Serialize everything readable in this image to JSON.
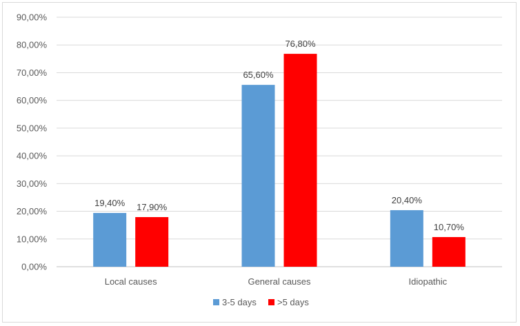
{
  "chart_data": {
    "type": "bar",
    "categories": [
      "Local causes",
      "General causes",
      "Idiopathic"
    ],
    "series": [
      {
        "name": "3-5 days",
        "color": "#5b9bd5",
        "values": [
          19.4,
          65.6,
          20.4
        ],
        "labels": [
          "19,40%",
          "65,60%",
          "20,40%"
        ]
      },
      {
        "name": ">5 days",
        "color": "#ff0000",
        "values": [
          17.9,
          76.8,
          10.7
        ],
        "labels": [
          "17,90%",
          "76,80%",
          "10,70%"
        ]
      }
    ],
    "ylim": [
      0,
      90
    ],
    "yticks": [
      0,
      10,
      20,
      30,
      40,
      50,
      60,
      70,
      80,
      90
    ],
    "ytick_labels": [
      "0,00%",
      "10,00%",
      "20,00%",
      "30,00%",
      "40,00%",
      "50,00%",
      "60,00%",
      "70,00%",
      "80,00%",
      "90,00%"
    ],
    "grid": true,
    "legend_position": "bottom",
    "title": "",
    "xlabel": "",
    "ylabel": ""
  }
}
